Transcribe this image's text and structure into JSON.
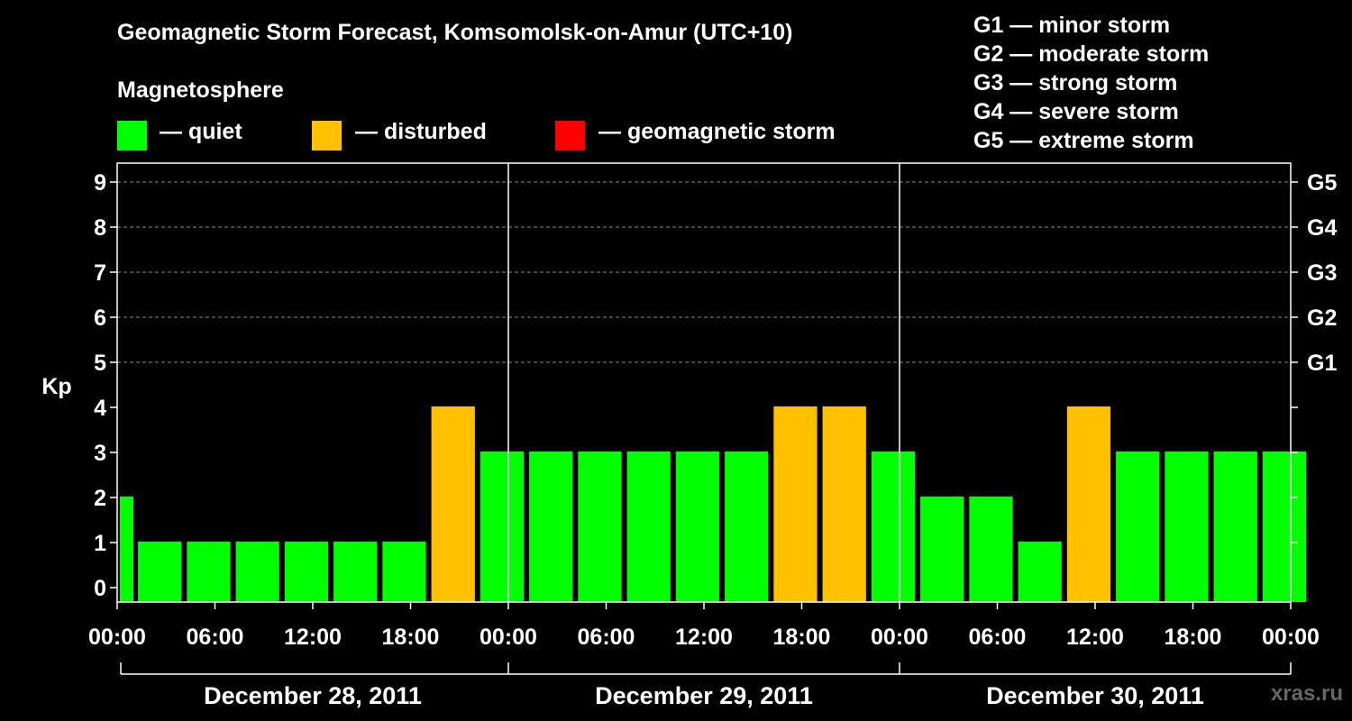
{
  "title": "Geomagnetic Storm Forecast, Komsomolsk-on-Amur (UTC+10)",
  "legend": {
    "heading": "Magnetosphere",
    "items": [
      {
        "label": "— quiet",
        "color": "#00ff00"
      },
      {
        "label": "— disturbed",
        "color": "#ffc000"
      },
      {
        "label": "— geomagnetic storm",
        "color": "#ff0000"
      }
    ]
  },
  "g_scale": [
    "G1 — minor storm",
    "G2 — moderate storm",
    "G3 — strong storm",
    "G4 — severe storm",
    "G5 — extreme storm"
  ],
  "footer": "xras.ru",
  "chart_data": {
    "type": "bar",
    "title": "Geomagnetic Storm Forecast, Komsomolsk-on-Amur (UTC+10)",
    "ylabel": "Kp",
    "ylim": [
      0,
      9
    ],
    "yticks": [
      "0",
      "1",
      "2",
      "3",
      "4",
      "5",
      "6",
      "7",
      "8",
      "9"
    ],
    "right_axis": [
      {
        "kp": 5,
        "label": "G1"
      },
      {
        "kp": 6,
        "label": "G2"
      },
      {
        "kp": 7,
        "label": "G3"
      },
      {
        "kp": 8,
        "label": "G4"
      },
      {
        "kp": 9,
        "label": "G5"
      }
    ],
    "x_tick_labels": [
      "00:00",
      "06:00",
      "12:00",
      "18:00",
      "00:00",
      "06:00",
      "12:00",
      "18:00",
      "00:00",
      "06:00",
      "12:00",
      "18:00",
      "00:00"
    ],
    "x_hours_total": 72,
    "first_bar_hours": 1,
    "bar_hours": 3,
    "days": [
      "December 28, 2011",
      "December 29, 2011",
      "December 30, 2011"
    ],
    "values": [
      2,
      1,
      1,
      1,
      1,
      1,
      1,
      4,
      3,
      3,
      3,
      3,
      3,
      3,
      4,
      4,
      3,
      2,
      2,
      1,
      4,
      3,
      3,
      3,
      3
    ],
    "status": [
      "quiet",
      "quiet",
      "quiet",
      "quiet",
      "quiet",
      "quiet",
      "quiet",
      "disturbed",
      "quiet",
      "quiet",
      "quiet",
      "quiet",
      "quiet",
      "quiet",
      "disturbed",
      "disturbed",
      "quiet",
      "quiet",
      "quiet",
      "quiet",
      "disturbed",
      "quiet",
      "quiet",
      "quiet",
      "quiet"
    ],
    "grid": true
  }
}
